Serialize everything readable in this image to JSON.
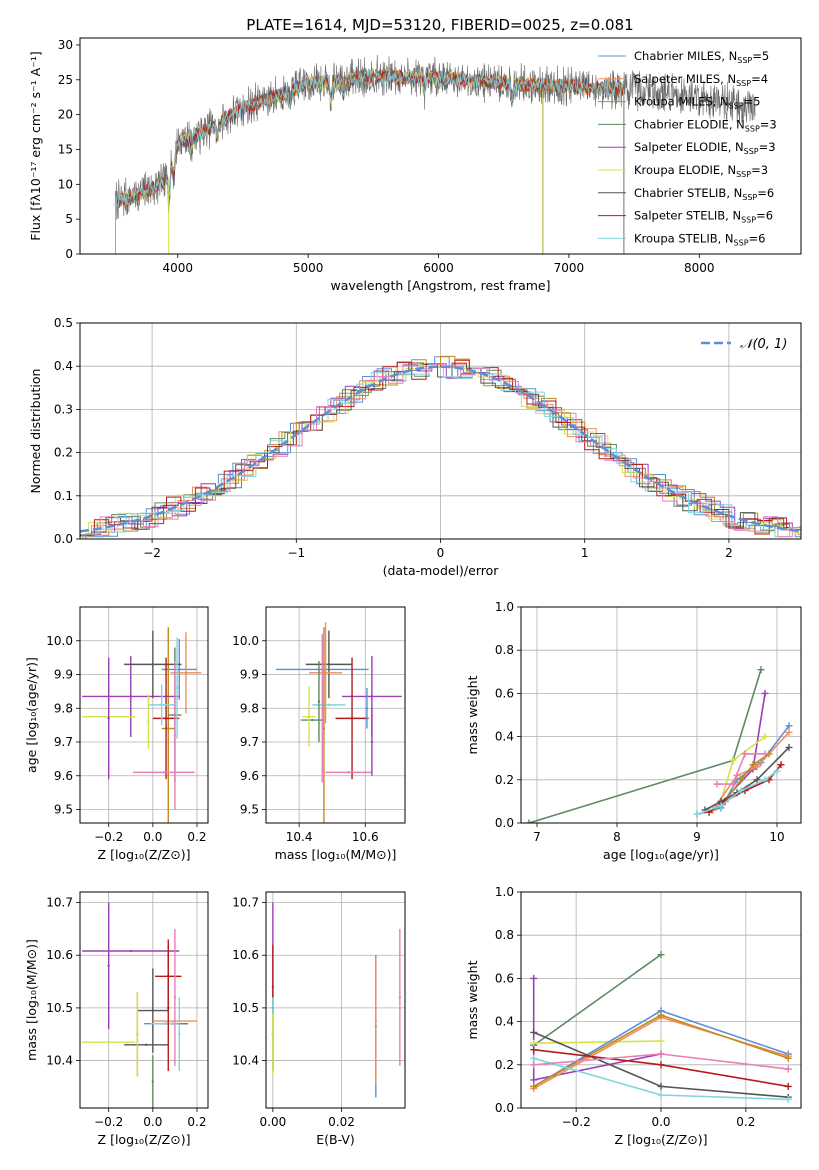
{
  "figure_title": "PLATE=1614, MJD=53120, FIBERID=0025, z=0.081",
  "colors": {
    "Chabrier MILES": "#5b8fd9",
    "Salpeter MILES": "#f28e5c",
    "Kroupa MILES": "#c08a1e",
    "Chabrier ELODIE": "#5d8a62",
    "Salpeter ELODIE": "#9b3fb3",
    "Kroupa ELODIE": "#d6e04a",
    "Chabrier STELIB": "#555555",
    "Salpeter STELIB": "#b41c1c",
    "Kroupa STELIB": "#7fd6dc",
    "gauss": "#5b8fd9",
    "pink": "#e87fb8"
  },
  "chart_data": [
    {
      "id": "spectrum",
      "type": "line",
      "title": "PLATE=1614, MJD=53120, FIBERID=0025, z=0.081",
      "xlabel": "wavelength [Angstrom, rest frame]",
      "ylabel": "Flux [fλ10⁻¹⁷ erg cm⁻² s⁻¹ A⁻¹]",
      "xlim": [
        3250,
        8780
      ],
      "ylim": [
        0,
        31
      ],
      "xticks": [
        4000,
        5000,
        6000,
        7000,
        8000
      ],
      "yticks": [
        0,
        5,
        10,
        15,
        20,
        25,
        30
      ],
      "grid": false,
      "legend_position": "top-right",
      "legend": [
        {
          "name": "Chabrier MILES",
          "nssp": "5"
        },
        {
          "name": "Salpeter MILES",
          "nssp": "4"
        },
        {
          "name": "Kroupa MILES",
          "nssp": "5"
        },
        {
          "name": "Chabrier ELODIE",
          "nssp": "3"
        },
        {
          "name": "Salpeter ELODIE",
          "nssp": "3"
        },
        {
          "name": "Kroupa ELODIE",
          "nssp": "3"
        },
        {
          "name": "Chabrier STELIB",
          "nssp": "6"
        },
        {
          "name": "Salpeter STELIB",
          "nssp": "6"
        },
        {
          "name": "Kroupa STELIB",
          "nssp": "6"
        }
      ],
      "continuum_anchor_points": [
        [
          3520,
          7.5
        ],
        [
          3700,
          8.6
        ],
        [
          3900,
          10.3
        ],
        [
          4000,
          16
        ],
        [
          4200,
          17.5
        ],
        [
          4500,
          21
        ],
        [
          4800,
          23
        ],
        [
          5000,
          24.5
        ],
        [
          5500,
          25.5
        ],
        [
          6000,
          25.3
        ],
        [
          6500,
          24.5
        ],
        [
          7000,
          24
        ],
        [
          7500,
          23.6
        ],
        [
          8000,
          22.5
        ],
        [
          8400,
          21
        ]
      ],
      "data_end_x": 8430,
      "model_end_x": {
        "MILES": 7420,
        "STELIB": 7420
      }
    },
    {
      "id": "residuals",
      "type": "line",
      "xlabel": "(data-model)/error",
      "ylabel": "Normed distribution",
      "xlim": [
        -2.5,
        2.5
      ],
      "ylim": [
        0,
        0.5
      ],
      "xticks": [
        -2,
        -1,
        0,
        1,
        2
      ],
      "yticks": [
        0.0,
        0.1,
        0.2,
        0.3,
        0.4,
        0.5
      ],
      "grid": true,
      "legend_position": "top-right",
      "legend": "𝒩(0, 1)",
      "bin_width": 0.1
    },
    {
      "id": "age-vs-Z",
      "type": "scatter",
      "xlabel": "Z [log₁₀(Z/Z⊙)]",
      "ylabel": "age  [log₁₀(age/yr)]",
      "xlim": [
        -0.33,
        0.25
      ],
      "ylim": [
        9.46,
        10.1
      ],
      "xticks": [
        -0.2,
        0.0,
        0.2
      ],
      "yticks": [
        9.5,
        9.6,
        9.7,
        9.8,
        9.9,
        10.0
      ],
      "grid": true,
      "points": [
        {
          "model": "Chabrier MILES",
          "x": 0.12,
          "y": 9.915,
          "xerr": 0.08,
          "yerr": 0.09
        },
        {
          "model": "Salpeter MILES",
          "x": 0.15,
          "y": 9.905,
          "xerr": 0.07,
          "yerr": 0.12
        },
        {
          "model": "Kroupa MILES",
          "x": 0.07,
          "y": 9.74,
          "xerr": 0.03,
          "yerr": 0.3
        },
        {
          "model": "Chabrier ELODIE",
          "x": 0.1,
          "y": 9.78,
          "xerr": 0.03,
          "yerr": 0.2
        },
        {
          "model": "Salpeter ELODIE",
          "x": -0.1,
          "y": 9.835,
          "xerr": 0.22,
          "yerr": 0.12
        },
        {
          "model": "Kroupa ELODIE",
          "x": -0.2,
          "y": 9.775,
          "xerr": 0.12,
          "yerr": 0.09
        },
        {
          "model": "Chabrier STELIB",
          "x": 0.0,
          "y": 9.93,
          "xerr": 0.13,
          "yerr": 0.1
        },
        {
          "model": "Salpeter STELIB",
          "x": 0.06,
          "y": 9.77,
          "xerr": 0.06,
          "yerr": 0.18
        },
        {
          "model": "Kroupa STELIB",
          "x": 0.04,
          "y": 9.81,
          "xerr": 0.06,
          "yerr": 0.06
        },
        {
          "model": "Salpeter ELODIE",
          "x": -0.2,
          "y": 9.77,
          "xerr": 0.0,
          "yerr": 0.18
        },
        {
          "model": "pink",
          "x": 0.05,
          "y": 9.61,
          "xerr": 0.14,
          "yerr": 0.0
        },
        {
          "model": "Kroupa STELIB",
          "x": 0.11,
          "y": 9.86,
          "xerr": 0.0,
          "yerr": 0.15
        },
        {
          "model": "pink",
          "x": 0.1,
          "y": 9.72,
          "xerr": 0.0,
          "yerr": 0.22
        },
        {
          "model": "Kroupa ELODIE",
          "x": -0.02,
          "y": 9.76,
          "xerr": 0.0,
          "yerr": 0.08
        }
      ]
    },
    {
      "id": "age-vs-mass",
      "type": "scatter",
      "xlabel": "mass [log₁₀(M/M⊙)]",
      "ylabel": "",
      "xlim": [
        10.3,
        10.72
      ],
      "ylim": [
        9.46,
        10.1
      ],
      "xticks": [
        10.4,
        10.6
      ],
      "yticks": [
        9.5,
        9.6,
        9.7,
        9.8,
        9.9,
        10.0
      ],
      "grid": true,
      "points": [
        {
          "model": "Chabrier MILES",
          "x": 10.47,
          "y": 9.915,
          "xerr": 0.14,
          "yerr": 0.0
        },
        {
          "model": "Chabrier STELIB",
          "x": 10.49,
          "y": 9.93,
          "xerr": 0.07,
          "yerr": 0.1
        },
        {
          "model": "Salpeter MILES",
          "x": 10.48,
          "y": 9.905,
          "xerr": 0.05,
          "yerr": 0.15
        },
        {
          "model": "Salpeter ELODIE",
          "x": 10.62,
          "y": 9.835,
          "xerr": 0.09,
          "yerr": 0.12
        },
        {
          "model": "Kroupa STELIB",
          "x": 10.49,
          "y": 9.81,
          "xerr": 0.05,
          "yerr": 0.0
        },
        {
          "model": "Salpeter STELIB",
          "x": 10.56,
          "y": 9.77,
          "xerr": 0.05,
          "yerr": 0.18
        },
        {
          "model": "Chabrier ELODIE",
          "x": 10.44,
          "y": 9.765,
          "xerr": 0.035,
          "yerr": 0.0
        },
        {
          "model": "Kroupa ELODIE",
          "x": 10.43,
          "y": 9.775,
          "xerr": 0.02,
          "yerr": 0.09
        },
        {
          "model": "Chabrier ELODIE",
          "x": 10.46,
          "y": 9.82,
          "xerr": 0.0,
          "yerr": 0.12
        },
        {
          "model": "Kroupa MILES",
          "x": 10.475,
          "y": 9.74,
          "xerr": 0.0,
          "yerr": 0.3
        },
        {
          "model": "pink",
          "x": 10.55,
          "y": 9.61,
          "xerr": 0.07,
          "yerr": 0.0
        },
        {
          "model": "pink",
          "x": 10.47,
          "y": 9.8,
          "xerr": 0.0,
          "yerr": 0.22
        },
        {
          "model": "Chabrier MILES",
          "x": 10.605,
          "y": 9.8,
          "xerr": 0.0,
          "yerr": 0.06
        },
        {
          "model": "Salpeter ELODIE",
          "x": 10.62,
          "y": 9.7,
          "xerr": 0.0,
          "yerr": 0.1
        }
      ]
    },
    {
      "id": "massweight-vs-age",
      "type": "line",
      "xlabel": "age  [log₁₀(age/yr)]",
      "ylabel": "mass weight",
      "xlim": [
        6.8,
        10.3
      ],
      "ylim": [
        0,
        1.0
      ],
      "xticks": [
        7,
        8,
        9,
        10
      ],
      "yticks": [
        0.0,
        0.2,
        0.4,
        0.6,
        0.8,
        1.0
      ],
      "grid": true,
      "series": [
        {
          "model": "Chabrier ELODIE",
          "x": [
            6.9,
            9.45,
            9.8
          ],
          "y": [
            0.0,
            0.29,
            0.71
          ]
        },
        {
          "model": "Salpeter ELODIE",
          "x": [
            9.3,
            9.7,
            9.85
          ],
          "y": [
            0.09,
            0.25,
            0.6
          ]
        },
        {
          "model": "Kroupa ELODIE",
          "x": [
            9.3,
            9.45,
            9.85
          ],
          "y": [
            0.1,
            0.29,
            0.4
          ]
        },
        {
          "model": "Chabrier MILES",
          "x": [
            9.0,
            9.3,
            9.5,
            9.8,
            10.15
          ],
          "y": [
            0.04,
            0.07,
            0.2,
            0.28,
            0.45
          ]
        },
        {
          "model": "Salpeter MILES",
          "x": [
            9.2,
            9.5,
            9.75,
            10.15
          ],
          "y": [
            0.06,
            0.22,
            0.26,
            0.42
          ]
        },
        {
          "model": "Kroupa MILES",
          "x": [
            9.35,
            9.55,
            9.7,
            9.9
          ],
          "y": [
            0.1,
            0.2,
            0.27,
            0.32
          ]
        },
        {
          "model": "Chabrier STELIB",
          "x": [
            9.1,
            9.3,
            9.5,
            9.75,
            10.15
          ],
          "y": [
            0.06,
            0.1,
            0.14,
            0.2,
            0.35
          ]
        },
        {
          "model": "Salpeter STELIB",
          "x": [
            9.15,
            9.35,
            9.6,
            9.9,
            10.05
          ],
          "y": [
            0.05,
            0.1,
            0.15,
            0.2,
            0.27
          ]
        },
        {
          "model": "Kroupa STELIB",
          "x": [
            9.0,
            9.3,
            9.55,
            9.85,
            10.0
          ],
          "y": [
            0.04,
            0.08,
            0.15,
            0.2,
            0.24
          ]
        },
        {
          "model": "pink",
          "x": [
            9.25,
            9.45,
            9.6,
            9.85
          ],
          "y": [
            0.18,
            0.18,
            0.32,
            0.32
          ]
        }
      ]
    },
    {
      "id": "mass-vs-Z",
      "type": "scatter",
      "xlabel": "Z [log₁₀(Z/Z⊙)]",
      "ylabel": "mass [log₁₀(M/M⊙)]",
      "xlim": [
        -0.33,
        0.25
      ],
      "ylim": [
        10.31,
        10.72
      ],
      "xticks": [
        -0.2,
        0.0,
        0.2
      ],
      "yticks": [
        10.4,
        10.5,
        10.6,
        10.7
      ],
      "grid": true,
      "points": [
        {
          "model": "Salpeter ELODIE",
          "x": -0.1,
          "y": 10.608,
          "xerr": 0.22,
          "yerr": 0.0
        },
        {
          "model": "Salpeter ELODIE",
          "x": -0.2,
          "y": 10.58,
          "xerr": 0.0,
          "yerr": 0.12
        },
        {
          "model": "Salpeter STELIB",
          "x": 0.07,
          "y": 10.56,
          "xerr": 0.06,
          "yerr": 0.07
        },
        {
          "model": "Chabrier STELIB",
          "x": 0.0,
          "y": 10.495,
          "xerr": 0.07,
          "yerr": 0.08
        },
        {
          "model": "Kroupa MILES",
          "x": -0.07,
          "y": 10.45,
          "xerr": 0.0,
          "yerr": 0.08
        },
        {
          "model": "Chabrier MILES",
          "x": 0.06,
          "y": 10.47,
          "xerr": 0.1,
          "yerr": 0.0
        },
        {
          "model": "Salpeter MILES",
          "x": 0.1,
          "y": 10.475,
          "xerr": 0.1,
          "yerr": 0.0
        },
        {
          "model": "Chabrier ELODIE",
          "x": 0.09,
          "y": 10.47,
          "xerr": 0.07,
          "yerr": 0.0
        },
        {
          "model": "Kroupa STELIB",
          "x": 0.05,
          "y": 10.47,
          "xerr": 0.06,
          "yerr": 0.0
        },
        {
          "model": "Kroupa STELIB",
          "x": 0.12,
          "y": 10.45,
          "xerr": 0.0,
          "yerr": 0.07
        },
        {
          "model": "Chabrier STELIB",
          "x": -0.03,
          "y": 10.43,
          "xerr": 0.1,
          "yerr": 0.0
        },
        {
          "model": "Kroupa ELODIE",
          "x": -0.2,
          "y": 10.435,
          "xerr": 0.12,
          "yerr": 0.0
        },
        {
          "model": "Kroupa ELODIE",
          "x": -0.07,
          "y": 10.45,
          "xerr": 0.0,
          "yerr": 0.08
        },
        {
          "model": "pink",
          "x": 0.1,
          "y": 10.52,
          "xerr": 0.0,
          "yerr": 0.13
        },
        {
          "model": "Chabrier ELODIE",
          "x": 0.0,
          "y": 10.36,
          "xerr": 0.0,
          "yerr": 0.05
        },
        {
          "model": "Salpeter STELIB",
          "x": 0.07,
          "y": 10.5,
          "xerr": 0.0,
          "yerr": 0.12
        }
      ]
    },
    {
      "id": "mass-vs-EBV",
      "type": "scatter",
      "xlabel": "E(B-V)",
      "ylabel": "",
      "xlim": [
        -0.002,
        0.0385
      ],
      "ylim": [
        10.31,
        10.72
      ],
      "xticks": [
        0.0,
        0.02
      ],
      "yticks": [
        10.4,
        10.5,
        10.6,
        10.7
      ],
      "grid": true,
      "points": [
        {
          "model": "Salpeter ELODIE",
          "x": 0.0,
          "y": 10.54,
          "xerr": 0.0,
          "yerr": 0.16
        },
        {
          "model": "Salpeter STELIB",
          "x": 0.0,
          "y": 10.5,
          "xerr": 0.0,
          "yerr": 0.12
        },
        {
          "model": "Chabrier ELODIE",
          "x": 0.0,
          "y": 10.45,
          "xerr": 0.0,
          "yerr": 0.07
        },
        {
          "model": "Kroupa STELIB",
          "x": 0.0,
          "y": 10.45,
          "xerr": 0.0,
          "yerr": 0.07
        },
        {
          "model": "Kroupa ELODIE",
          "x": 0.0,
          "y": 10.43,
          "xerr": 0.0,
          "yerr": 0.06
        },
        {
          "model": "Chabrier MILES",
          "x": 0.03,
          "y": 10.465,
          "xerr": 0.0,
          "yerr": 0.135
        },
        {
          "model": "Salpeter MILES",
          "x": 0.03,
          "y": 10.475,
          "xerr": 0.0,
          "yerr": 0.12
        },
        {
          "model": "pink",
          "x": 0.037,
          "y": 10.52,
          "xerr": 0.0,
          "yerr": 0.13
        }
      ]
    },
    {
      "id": "massweight-vs-Z",
      "type": "line",
      "xlabel": "Z [log₁₀(Z/Z⊙)]",
      "ylabel": "mass weight",
      "xlim": [
        -0.33,
        0.33
      ],
      "ylim": [
        0,
        1.0
      ],
      "xticks": [
        -0.2,
        0.0,
        0.2
      ],
      "yticks": [
        0.0,
        0.2,
        0.4,
        0.6,
        0.8,
        1.0
      ],
      "grid": true,
      "series": [
        {
          "model": "Chabrier ELODIE",
          "x": [
            -0.3,
            0.0
          ],
          "y": [
            0.29,
            0.71
          ]
        },
        {
          "model": "Salpeter ELODIE",
          "x": [
            -0.3,
            -0.3,
            0.0
          ],
          "y": [
            0.6,
            0.13,
            0.25
          ]
        },
        {
          "model": "Kroupa ELODIE",
          "x": [
            -0.3,
            0.0
          ],
          "y": [
            0.3,
            0.31
          ]
        },
        {
          "model": "Chabrier MILES",
          "x": [
            -0.3,
            0.0,
            0.3
          ],
          "y": [
            0.1,
            0.45,
            0.25
          ]
        },
        {
          "model": "Salpeter MILES",
          "x": [
            -0.3,
            0.0,
            0.3
          ],
          "y": [
            0.09,
            0.42,
            0.24
          ]
        },
        {
          "model": "Kroupa MILES",
          "x": [
            -0.3,
            0.0,
            0.3
          ],
          "y": [
            0.1,
            0.43,
            0.23
          ]
        },
        {
          "model": "Chabrier STELIB",
          "x": [
            -0.3,
            0.0,
            0.3
          ],
          "y": [
            0.35,
            0.1,
            0.05
          ]
        },
        {
          "model": "Salpeter STELIB",
          "x": [
            -0.3,
            0.0,
            0.3
          ],
          "y": [
            0.27,
            0.2,
            0.1
          ]
        },
        {
          "model": "Kroupa STELIB",
          "x": [
            -0.3,
            0.0,
            0.3
          ],
          "y": [
            0.23,
            0.06,
            0.04
          ]
        },
        {
          "model": "pink",
          "x": [
            -0.3,
            0.0,
            0.3
          ],
          "y": [
            0.2,
            0.25,
            0.18
          ]
        }
      ]
    }
  ]
}
